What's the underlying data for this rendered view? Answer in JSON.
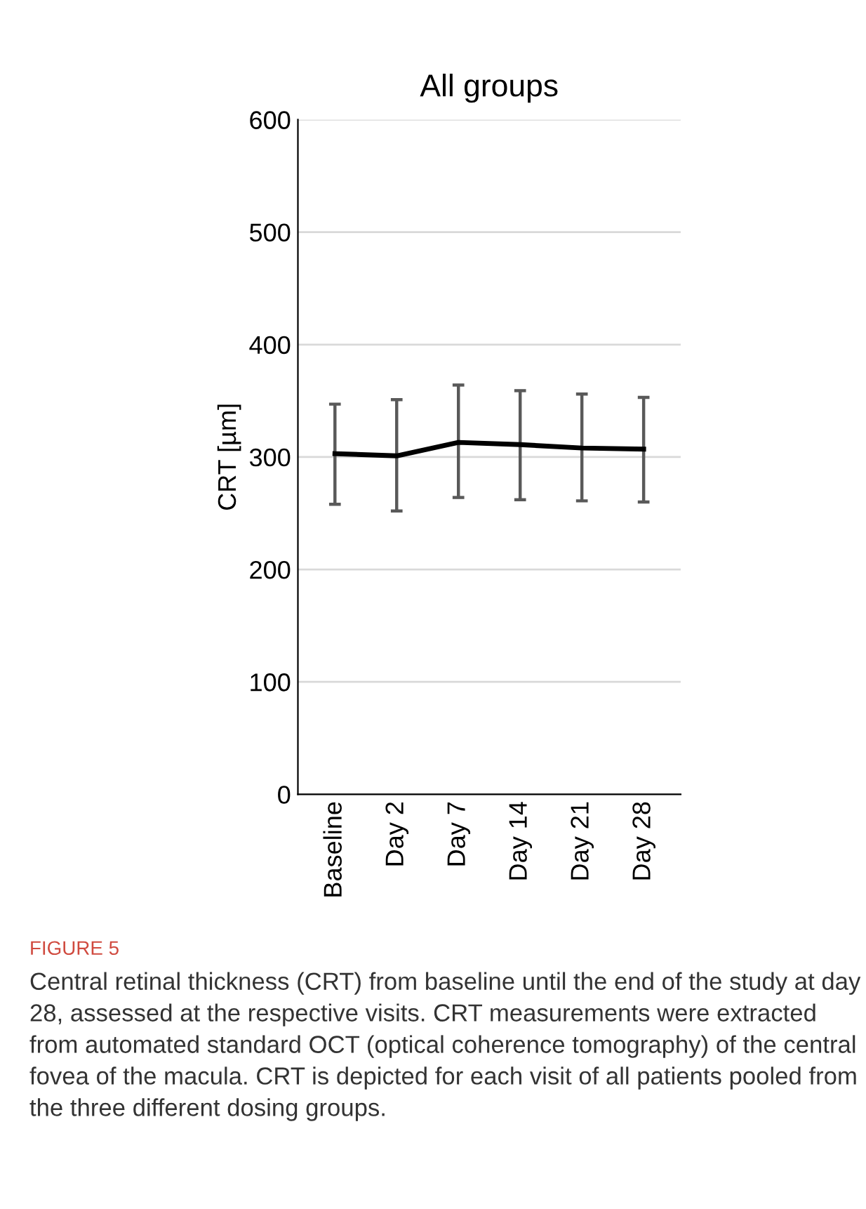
{
  "chart_data": {
    "type": "line",
    "title": "All groups",
    "ylabel": "CRT [µm]",
    "categories": [
      "Baseline",
      "Day 2",
      "Day 7",
      "Day 14",
      "Day 21",
      "Day 28"
    ],
    "series": [
      {
        "color": "#000000",
        "values": [
          303,
          301,
          313,
          311,
          308,
          307
        ],
        "errors": [
          [
            258,
            347
          ],
          [
            252,
            351
          ],
          [
            264,
            364
          ],
          [
            262,
            359
          ],
          [
            261,
            356
          ],
          [
            260,
            353
          ]
        ]
      }
    ],
    "ylim": [
      0,
      600
    ],
    "yticks": [
      0,
      100,
      200,
      300,
      400,
      500,
      600
    ],
    "grid": "y",
    "legend": false,
    "marker": "none",
    "line_style": "solid",
    "annotations": [
      "FIGURE 5",
      "Central retinal thickness (CRT) from baseline until the end of the study at day 28, assessed at the respective visits. CRT measurements were extracted from automated standard OCT (optical coherence tomography) of the central fovea of the macula. CRT is depicted for each visit of all patients pooled from the three different dosing groups."
    ]
  }
}
